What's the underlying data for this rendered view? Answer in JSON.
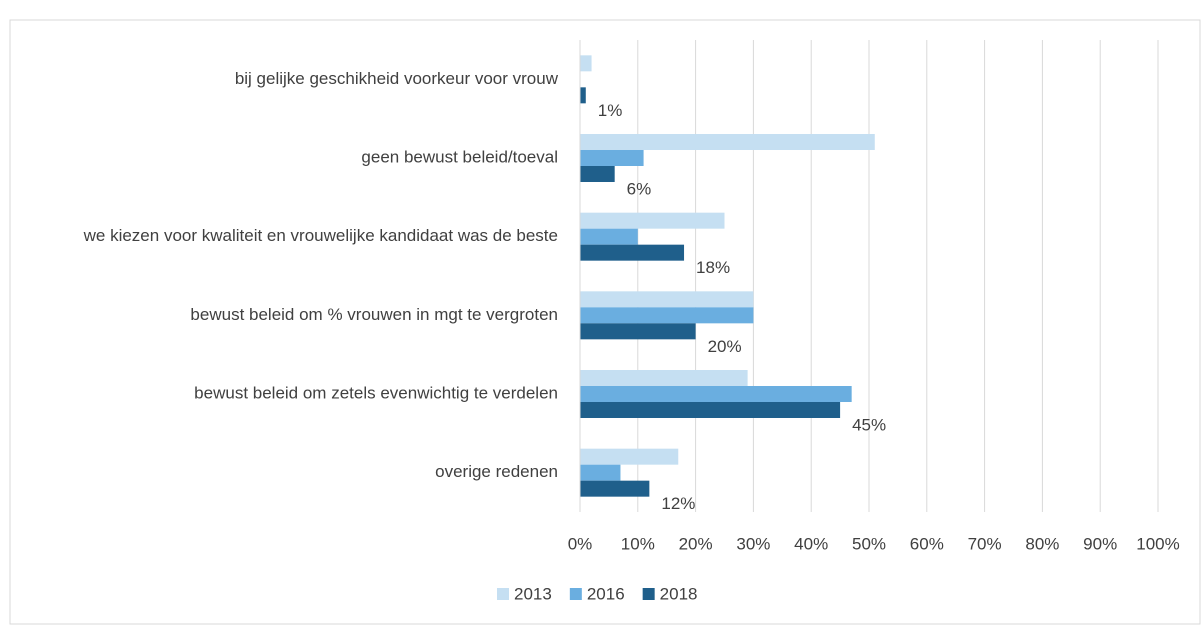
{
  "chart_data": {
    "type": "bar",
    "orientation": "horizontal",
    "categories": [
      "bij gelijke geschikheid voorkeur voor vrouw",
      "geen bewust beleid/toeval",
      "we kiezen voor kwaliteit en vrouwelijke kandidaat was de beste",
      "bewust beleid om % vrouwen in mgt te vergroten",
      "bewust beleid om zetels evenwichtig te verdelen",
      "overige redenen"
    ],
    "series": [
      {
        "name": "2013",
        "color": "#c5dff2",
        "values": [
          2,
          51,
          25,
          30,
          29,
          17
        ]
      },
      {
        "name": "2016",
        "color": "#6aaee0",
        "values": [
          0,
          11,
          10,
          30,
          47,
          7
        ]
      },
      {
        "name": "2018",
        "color": "#1f5f8b",
        "values": [
          1,
          6,
          18,
          20,
          45,
          12
        ],
        "value_labels": [
          "1%",
          "6%",
          "18%",
          "20%",
          "45%",
          "12%"
        ]
      }
    ],
    "xlim": [
      0,
      100
    ],
    "xticks": [
      {
        "value": 0,
        "label": "0%"
      },
      {
        "value": 10,
        "label": "10%"
      },
      {
        "value": 20,
        "label": "20%"
      },
      {
        "value": 30,
        "label": "30%"
      },
      {
        "value": 40,
        "label": "40%"
      },
      {
        "value": 50,
        "label": "50%"
      },
      {
        "value": 60,
        "label": "60%"
      },
      {
        "value": 70,
        "label": "70%"
      },
      {
        "value": 80,
        "label": "80%"
      },
      {
        "value": 90,
        "label": "90%"
      },
      {
        "value": 100,
        "label": "100%"
      }
    ],
    "grid": true,
    "legend": "bottom"
  }
}
